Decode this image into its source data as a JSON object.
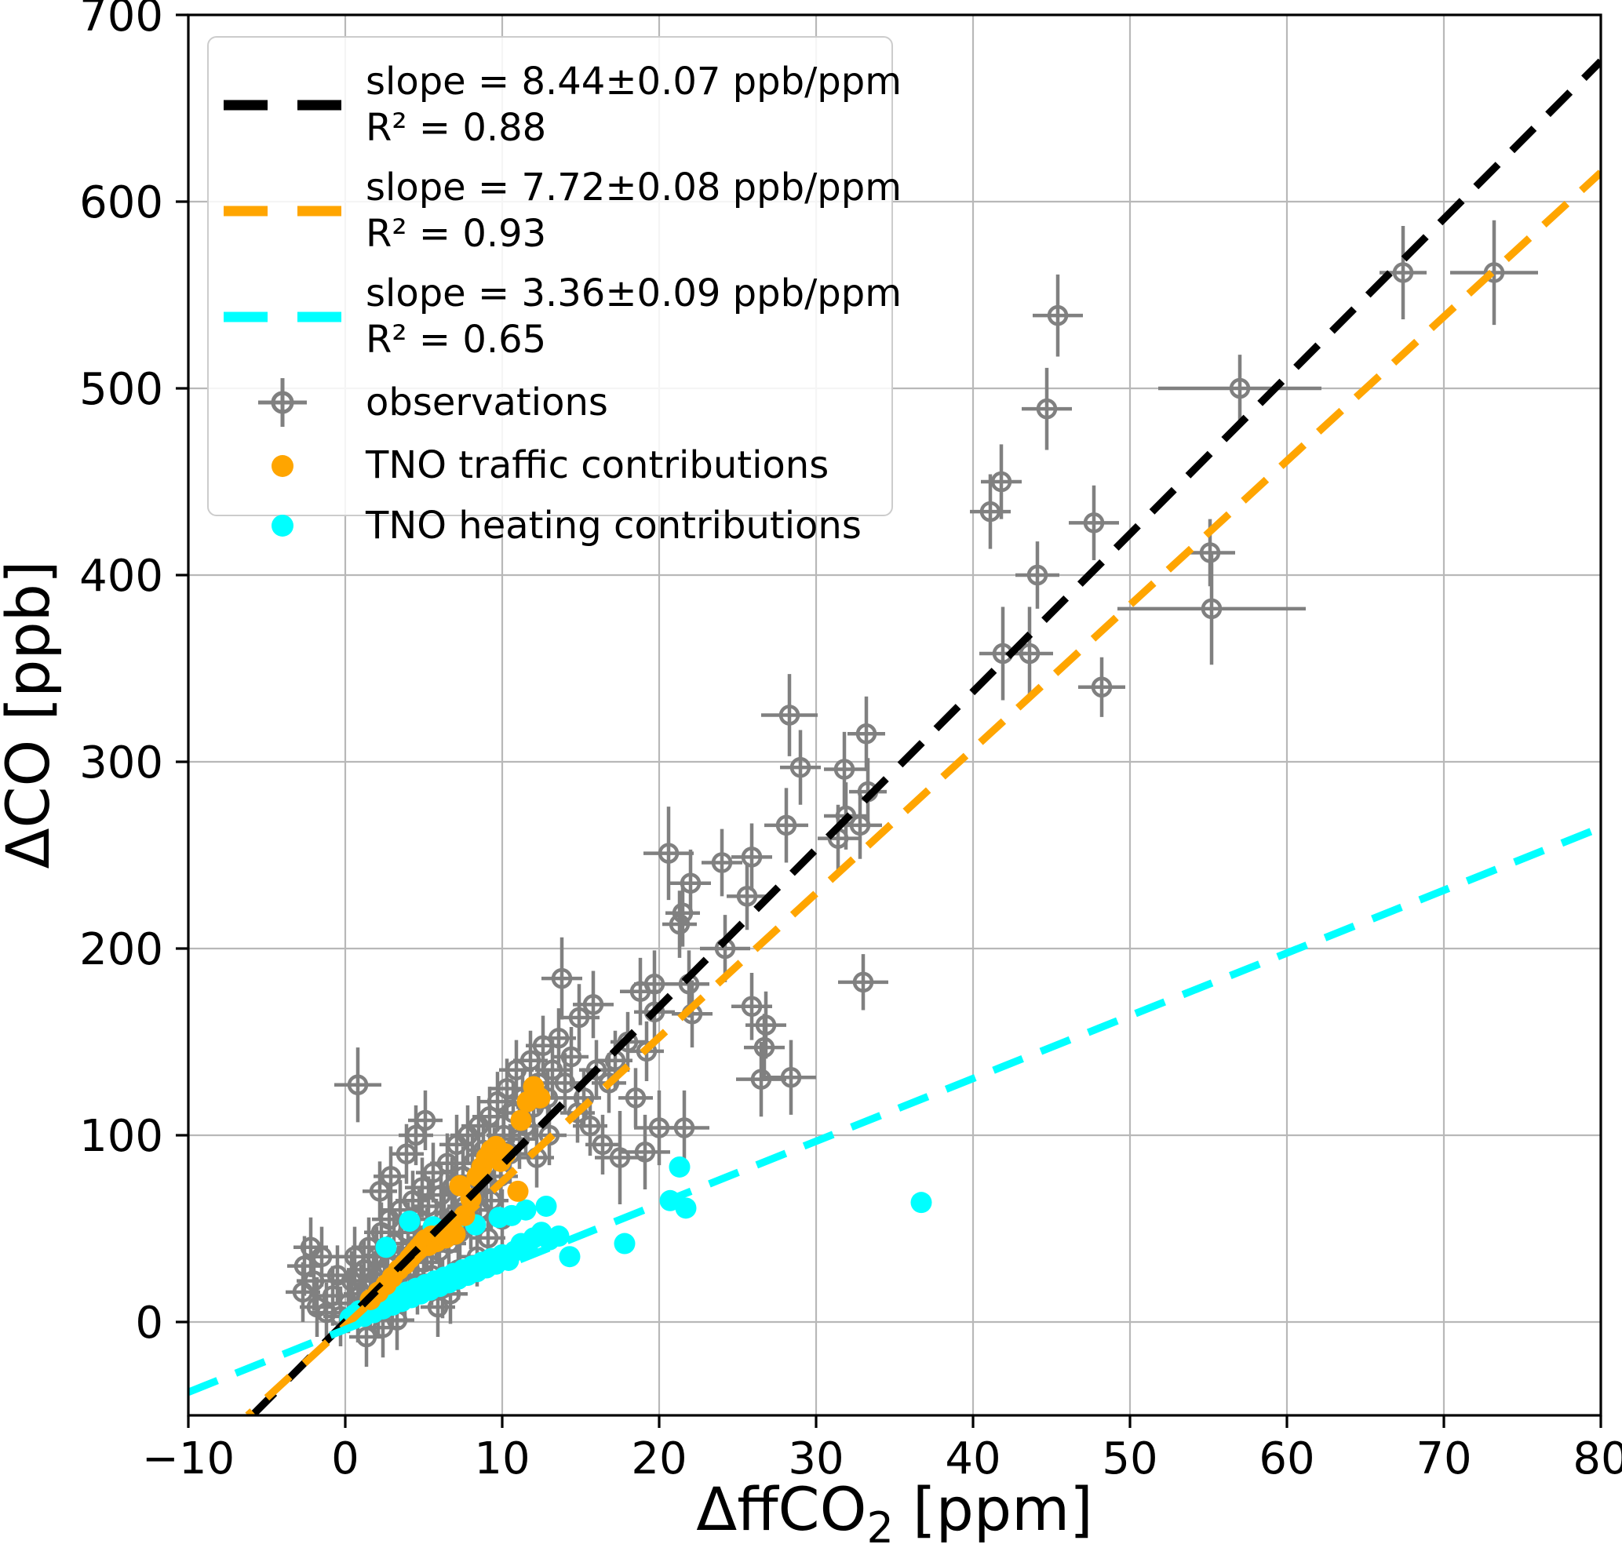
{
  "figure": {
    "xlabel": {
      "prefix": "ΔffCO",
      "sub": "2",
      "suffix": " [ppm]"
    },
    "ylabel": "ΔCO [ppb]",
    "x_tick_values": [
      -10,
      0,
      10,
      20,
      30,
      40,
      50,
      60,
      70,
      80
    ],
    "x_tick_labels": [
      "−10",
      "0",
      "10",
      "20",
      "30",
      "40",
      "50",
      "60",
      "70",
      "80"
    ],
    "y_tick_values": [
      0,
      100,
      200,
      300,
      400,
      500,
      600,
      700
    ],
    "y_tick_labels": [
      "0",
      "100",
      "200",
      "300",
      "400",
      "500",
      "600",
      "700"
    ],
    "colors": {
      "observations": "#808080",
      "traffic": "#FFA500",
      "heating": "#00FFFF",
      "fit_observations": "#000000",
      "grid": "#b8b8b8",
      "frame": "#000000",
      "background": "#ffffff"
    }
  },
  "legend": {
    "entries": [
      {
        "marker": "dash",
        "color": "#000000",
        "line1": "slope = 8.44±0.07 ppb/ppm",
        "line2": "R² = 0.88"
      },
      {
        "marker": "dash",
        "color": "#FFA500",
        "line1": "slope = 7.72±0.08 ppb/ppm",
        "line2": "R² = 0.93"
      },
      {
        "marker": "dash",
        "color": "#00FFFF",
        "line1": "slope = 3.36±0.09 ppb/ppm",
        "line2": "R² = 0.65"
      },
      {
        "marker": "errorbar",
        "color": "#808080",
        "line1": "observations",
        "line2": ""
      },
      {
        "marker": "dot",
        "color": "#FFA500",
        "line1": "TNO traffic contributions",
        "line2": ""
      },
      {
        "marker": "dot",
        "color": "#00FFFF",
        "line1": "TNO heating contributions",
        "line2": ""
      }
    ]
  },
  "chart_data": {
    "type": "scatter",
    "title": "",
    "xlabel": "ΔffCO₂ [ppm]",
    "ylabel": "ΔCO [ppb]",
    "xlim": [
      -10,
      80
    ],
    "ylim": [
      -50,
      700
    ],
    "grid": true,
    "legend_position": "upper left",
    "fit_lines": [
      {
        "name": "observations fit",
        "color": "#000000",
        "slope": 8.44,
        "slope_err": 0.07,
        "intercept": 0,
        "r2": 0.88,
        "dash": true
      },
      {
        "name": "TNO traffic fit",
        "color": "#FFA500",
        "slope": 7.72,
        "slope_err": 0.08,
        "intercept": -2,
        "r2": 0.93,
        "dash": true
      },
      {
        "name": "TNO heating fit",
        "color": "#00FFFF",
        "slope": 3.36,
        "slope_err": 0.09,
        "intercept": -4,
        "r2": 0.65,
        "dash": true
      }
    ],
    "series": [
      {
        "name": "observations",
        "color": "#808080",
        "marker": "errorbar-circle",
        "default_xerr": 1.1,
        "default_yerr": 16,
        "points": [
          [
            0.8,
            127,
            1.5,
            20
          ],
          [
            13.8,
            184,
            1.3,
            22
          ],
          [
            14.9,
            163,
            1.3,
            18
          ],
          [
            15.8,
            170,
            1.3,
            18
          ],
          [
            17.5,
            88,
            1.6,
            25
          ],
          [
            19.1,
            91,
            1.6,
            20
          ],
          [
            18.8,
            177,
            1.3,
            18
          ],
          [
            19.7,
            181,
            1.3,
            18
          ],
          [
            19.7,
            166,
            1.3,
            18
          ],
          [
            20.0,
            104,
            1.6,
            20
          ],
          [
            20.6,
            251,
            1.6,
            25
          ],
          [
            21.3,
            213,
            1.1,
            18
          ],
          [
            21.5,
            219,
            1.1,
            18
          ],
          [
            21.6,
            104,
            1.6,
            20
          ],
          [
            21.9,
            181,
            1.3,
            18
          ],
          [
            22.0,
            235,
            1.3,
            18
          ],
          [
            22.1,
            165,
            1.3,
            18
          ],
          [
            24.0,
            246,
            1.3,
            18
          ],
          [
            24.2,
            200,
            1.6,
            18
          ],
          [
            25.6,
            228,
            1.3,
            18
          ],
          [
            25.9,
            249,
            1.3,
            18
          ],
          [
            25.9,
            169,
            1.3,
            18
          ],
          [
            26.5,
            130,
            1.6,
            20
          ],
          [
            26.7,
            147,
            1.3,
            18
          ],
          [
            26.8,
            159,
            1.3,
            18
          ],
          [
            28.1,
            266,
            1.4,
            20
          ],
          [
            28.3,
            325,
            1.8,
            22
          ],
          [
            28.4,
            131,
            1.6,
            20
          ],
          [
            29.0,
            297,
            1.3,
            20
          ],
          [
            31.4,
            259,
            1.3,
            18
          ],
          [
            31.8,
            296,
            1.3,
            20
          ],
          [
            31.9,
            271,
            1.4,
            18
          ],
          [
            32.8,
            266,
            1.4,
            18
          ],
          [
            33.0,
            182,
            1.6,
            15
          ],
          [
            33.2,
            315,
            1.2,
            20
          ],
          [
            33.3,
            284,
            1.2,
            18
          ],
          [
            41.1,
            434,
            1.3,
            20
          ],
          [
            41.8,
            450,
            1.3,
            20
          ],
          [
            41.9,
            358,
            1.5,
            25
          ],
          [
            43.6,
            358,
            1.5,
            25
          ],
          [
            44.1,
            400,
            1.4,
            18
          ],
          [
            44.7,
            489,
            1.6,
            22
          ],
          [
            45.4,
            539,
            1.6,
            22
          ],
          [
            47.7,
            428,
            1.6,
            20
          ],
          [
            48.2,
            340,
            1.5,
            16
          ],
          [
            55.1,
            412,
            1.6,
            18
          ],
          [
            55.2,
            382,
            6,
            30
          ],
          [
            57.0,
            500,
            5.2,
            18
          ],
          [
            67.4,
            562,
            1.5,
            25
          ],
          [
            73.2,
            562,
            2.8,
            28
          ],
          [
            -2.7,
            16
          ],
          [
            -2.6,
            30
          ],
          [
            -2.2,
            40
          ],
          [
            -2.0,
            22
          ],
          [
            -1.8,
            8
          ],
          [
            -1.5,
            35
          ],
          [
            -1.2,
            5
          ],
          [
            -0.8,
            14
          ],
          [
            -0.5,
            25
          ],
          [
            -0.3,
            3
          ],
          [
            0.2,
            10
          ],
          [
            0.4,
            22
          ],
          [
            0.6,
            35
          ],
          [
            0.8,
            5
          ],
          [
            1.0,
            15
          ],
          [
            1.2,
            28
          ],
          [
            1.35,
            -8
          ],
          [
            1.5,
            40
          ],
          [
            1.6,
            12
          ],
          [
            1.8,
            22
          ],
          [
            2.0,
            35
          ],
          [
            2.1,
            8
          ],
          [
            2.3,
            48
          ],
          [
            2.4,
            -3
          ],
          [
            2.5,
            18
          ],
          [
            2.7,
            30
          ],
          [
            2.8,
            55
          ],
          [
            3.0,
            12
          ],
          [
            3.1,
            42
          ],
          [
            3.3,
            1
          ],
          [
            3.4,
            25
          ],
          [
            3.5,
            60
          ],
          [
            3.6,
            35
          ],
          [
            3.8,
            15
          ],
          [
            3.9,
            90
          ],
          [
            4.0,
            48
          ],
          [
            4.1,
            28
          ],
          [
            4.3,
            65
          ],
          [
            4.4,
            38
          ],
          [
            4.5,
            100
          ],
          [
            4.6,
            20
          ],
          [
            4.7,
            55
          ],
          [
            4.9,
            72
          ],
          [
            5.0,
            32
          ],
          [
            5.1,
            108
          ],
          [
            5.2,
            45
          ],
          [
            5.3,
            62
          ],
          [
            5.5,
            25
          ],
          [
            5.6,
            80
          ],
          [
            5.8,
            50
          ],
          [
            5.9,
            8
          ],
          [
            6.0,
            38
          ],
          [
            6.1,
            68
          ],
          [
            6.2,
            18
          ],
          [
            6.3,
            55
          ],
          [
            6.5,
            85
          ],
          [
            6.6,
            42
          ],
          [
            6.7,
            15
          ],
          [
            6.8,
            72
          ],
          [
            7.0,
            58
          ],
          [
            7.1,
            95
          ],
          [
            7.2,
            28
          ],
          [
            7.3,
            48
          ],
          [
            7.5,
            78
          ],
          [
            7.6,
            62
          ],
          [
            7.8,
            100
          ],
          [
            8.0,
            55
          ],
          [
            8.1,
            85
          ],
          [
            8.3,
            70
          ],
          [
            8.4,
            35
          ],
          [
            8.5,
            105
          ],
          [
            8.6,
            60
          ],
          [
            8.8,
            92
          ],
          [
            9.0,
            75
          ],
          [
            9.1,
            45
          ],
          [
            9.2,
            110
          ],
          [
            9.3,
            65
          ],
          [
            9.5,
            88
          ],
          [
            9.7,
            118
          ],
          [
            9.9,
            78
          ],
          [
            10.0,
            55
          ],
          [
            10.1,
            100
          ],
          [
            10.3,
            125
          ],
          [
            10.5,
            90
          ],
          [
            10.7,
            112
          ],
          [
            10.9,
            135
          ],
          [
            11.1,
            98
          ],
          [
            11.3,
            120
          ],
          [
            11.5,
            105
          ],
          [
            11.8,
            140
          ],
          [
            12.0,
            115
          ],
          [
            12.2,
            88
          ],
          [
            12.3,
            128
          ],
          [
            12.6,
            148
          ],
          [
            12.9,
            120
          ],
          [
            13.0,
            100
          ],
          [
            13.2,
            135
          ],
          [
            13.6,
            152
          ],
          [
            14.0,
            128
          ],
          [
            14.4,
            142
          ],
          [
            2.2,
            70
          ],
          [
            2.9,
            78
          ],
          [
            14.8,
            112
          ],
          [
            15.2,
            120
          ],
          [
            15.6,
            105
          ],
          [
            16.0,
            135
          ],
          [
            16.4,
            95
          ],
          [
            16.8,
            128
          ],
          [
            17.2,
            140
          ],
          [
            18.0,
            150
          ],
          [
            18.5,
            120
          ],
          [
            19.2,
            145
          ]
        ]
      },
      {
        "name": "TNO traffic contributions",
        "color": "#FFA500",
        "marker": "dot",
        "points": [
          [
            1.6,
            12
          ],
          [
            2.1,
            16
          ],
          [
            2.6,
            20
          ],
          [
            3.0,
            24
          ],
          [
            3.4,
            28
          ],
          [
            3.8,
            31
          ],
          [
            4.1,
            34
          ],
          [
            4.3,
            36
          ],
          [
            4.5,
            38
          ],
          [
            4.7,
            40
          ],
          [
            4.9,
            42
          ],
          [
            5.1,
            44
          ],
          [
            5.3,
            41
          ],
          [
            5.5,
            46
          ],
          [
            5.8,
            43
          ],
          [
            6.1,
            47
          ],
          [
            6.4,
            45
          ],
          [
            6.7,
            50
          ],
          [
            7.0,
            47
          ],
          [
            7.3,
            73
          ],
          [
            7.6,
            57
          ],
          [
            8.0,
            66
          ],
          [
            8.4,
            78
          ],
          [
            8.7,
            83
          ],
          [
            9.0,
            88
          ],
          [
            9.3,
            92
          ],
          [
            9.6,
            94
          ],
          [
            9.9,
            86
          ],
          [
            10.2,
            90
          ],
          [
            11.0,
            70
          ],
          [
            11.2,
            108
          ],
          [
            11.6,
            118
          ],
          [
            12.0,
            126
          ],
          [
            12.4,
            120
          ]
        ]
      },
      {
        "name": "TNO heating contributions",
        "color": "#00FFFF",
        "marker": "dot",
        "points": [
          [
            0.3,
            2
          ],
          [
            0.6,
            4
          ],
          [
            0.9,
            6
          ],
          [
            1.2,
            3
          ],
          [
            1.5,
            8
          ],
          [
            1.8,
            5
          ],
          [
            2.1,
            10
          ],
          [
            2.4,
            7
          ],
          [
            2.7,
            12
          ],
          [
            3.0,
            9
          ],
          [
            3.3,
            14
          ],
          [
            3.6,
            11
          ],
          [
            3.9,
            16
          ],
          [
            4.2,
            13
          ],
          [
            4.5,
            18
          ],
          [
            4.8,
            15
          ],
          [
            5.1,
            20
          ],
          [
            5.4,
            17
          ],
          [
            5.7,
            22
          ],
          [
            6.0,
            19
          ],
          [
            6.3,
            24
          ],
          [
            6.6,
            21
          ],
          [
            6.9,
            26
          ],
          [
            7.2,
            23
          ],
          [
            7.5,
            28
          ],
          [
            7.8,
            25
          ],
          [
            8.1,
            30
          ],
          [
            8.4,
            27
          ],
          [
            8.7,
            32
          ],
          [
            9.0,
            29
          ],
          [
            9.3,
            34
          ],
          [
            9.6,
            31
          ],
          [
            10.0,
            36
          ],
          [
            10.4,
            33
          ],
          [
            10.8,
            38
          ],
          [
            11.2,
            42
          ],
          [
            11.6,
            39
          ],
          [
            12.0,
            45
          ],
          [
            12.5,
            48
          ],
          [
            13.0,
            44
          ],
          [
            13.6,
            46
          ],
          [
            14.3,
            35
          ],
          [
            2.6,
            40
          ],
          [
            4.1,
            54
          ],
          [
            5.6,
            51
          ],
          [
            6.9,
            53
          ],
          [
            8.3,
            52
          ],
          [
            9.8,
            56
          ],
          [
            10.6,
            57
          ],
          [
            11.5,
            60
          ],
          [
            12.8,
            62
          ],
          [
            17.8,
            42
          ],
          [
            20.7,
            65
          ],
          [
            21.3,
            83
          ],
          [
            21.7,
            61
          ],
          [
            36.7,
            64
          ]
        ]
      }
    ]
  }
}
